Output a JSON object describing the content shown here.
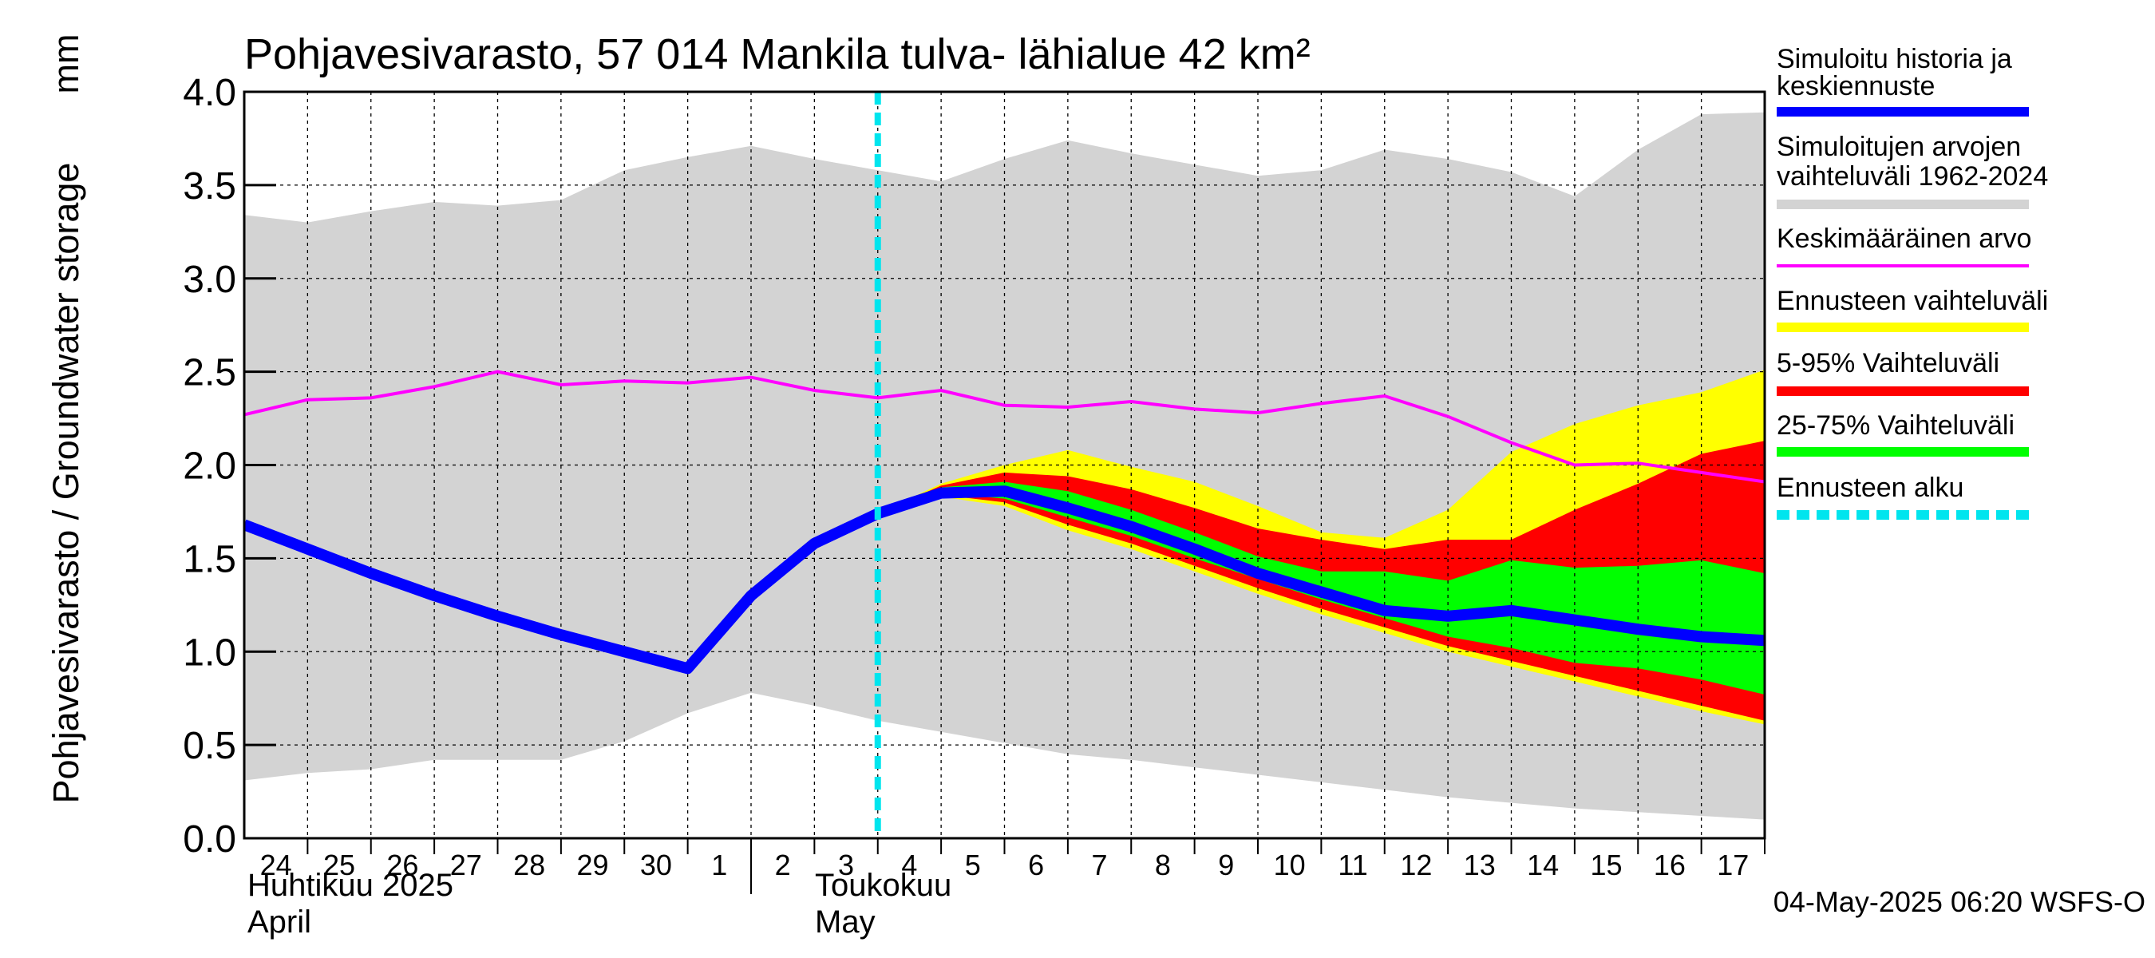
{
  "chart_data": {
    "type": "area",
    "title": "Pohjavesivarasto, 57 014 Mankila tulva- lähialue 42 km²",
    "ylabel": "Pohjavesivarasto / Groundwater storage",
    "yunit": "mm",
    "ylim": [
      0,
      4
    ],
    "yticks": [
      "0.0",
      "0.5",
      "1.0",
      "1.5",
      "2.0",
      "2.5",
      "3.0",
      "3.5",
      "4.0"
    ],
    "ytick_values": [
      0,
      0.5,
      1,
      1.5,
      2,
      2.5,
      3,
      3.5,
      4
    ],
    "xlim": [
      "2025-04-24",
      "2025-05-18"
    ],
    "grid": true,
    "legend_position": "right",
    "x_day_labels": [
      "24",
      "25",
      "26",
      "27",
      "28",
      "29",
      "30",
      "1",
      "2",
      "3",
      "4",
      "5",
      "6",
      "7",
      "8",
      "9",
      "10",
      "11",
      "12",
      "13",
      "14",
      "15",
      "16",
      "17"
    ],
    "month_labels": [
      {
        "fi": "Huhtikuu  2025",
        "en": "April",
        "date": "2025-04-24"
      },
      {
        "fi": "Toukokuu",
        "en": "May",
        "date": "2025-05-02"
      }
    ],
    "forecast_start": "2025-05-04",
    "footer": "04-May-2025 06:20 WSFS-O",
    "colors": {
      "history_range": "#d3d3d3",
      "forecast_range": "#ffff00",
      "range_5_95": "#ff0000",
      "range_25_75": "#00ff00",
      "simulated": "#0000ff",
      "mean": "#ff00ff",
      "forecast_start": "#00e5ee"
    },
    "legend": [
      {
        "label": "Simuloitu historia ja",
        "label2": "keskiennuste",
        "color": "#0000ff",
        "style": "thick"
      },
      {
        "label": "Simuloitujen arvojen",
        "label2": "vaihteluväli 1962-2024",
        "color": "#d3d3d3",
        "style": "thick"
      },
      {
        "label": "Keskimääräinen arvo",
        "label2": "",
        "color": "#ff00ff",
        "style": "thin"
      },
      {
        "label": "Ennusteen vaihteluväli",
        "label2": "",
        "color": "#ffff00",
        "style": "thick"
      },
      {
        "label": "5-95% Vaihteluväli",
        "label2": "",
        "color": "#ff0000",
        "style": "thick"
      },
      {
        "label": "25-75% Vaihteluväli",
        "label2": "",
        "color": "#00ff00",
        "style": "thick"
      },
      {
        "label": "Ennusteen alku",
        "label2": "",
        "color": "#00e5ee",
        "style": "dashed"
      }
    ],
    "series": [
      {
        "name": "Simulated history range upper",
        "x": [
          "2025-04-24",
          "2025-04-25",
          "2025-04-26",
          "2025-04-27",
          "2025-04-28",
          "2025-04-29",
          "2025-04-30",
          "2025-05-01",
          "2025-05-02",
          "2025-05-03",
          "2025-05-04",
          "2025-05-05",
          "2025-05-06",
          "2025-05-07",
          "2025-05-08",
          "2025-05-09",
          "2025-05-10",
          "2025-05-11",
          "2025-05-12",
          "2025-05-13",
          "2025-05-14",
          "2025-05-15",
          "2025-05-16",
          "2025-05-17",
          "2025-05-18"
        ],
        "values": [
          3.34,
          3.3,
          3.36,
          3.41,
          3.39,
          3.42,
          3.58,
          3.65,
          3.71,
          3.64,
          3.58,
          3.52,
          3.64,
          3.74,
          3.67,
          3.61,
          3.55,
          3.58,
          3.69,
          3.64,
          3.57,
          3.44,
          3.69,
          3.88,
          3.89
        ]
      },
      {
        "name": "Simulated history range lower",
        "x": [
          "2025-04-24",
          "2025-04-25",
          "2025-04-26",
          "2025-04-27",
          "2025-04-28",
          "2025-04-29",
          "2025-04-30",
          "2025-05-01",
          "2025-05-02",
          "2025-05-03",
          "2025-05-04",
          "2025-05-05",
          "2025-05-06",
          "2025-05-07",
          "2025-05-08",
          "2025-05-09",
          "2025-05-10",
          "2025-05-11",
          "2025-05-12",
          "2025-05-13",
          "2025-05-14",
          "2025-05-15",
          "2025-05-16",
          "2025-05-17",
          "2025-05-18"
        ],
        "values": [
          0.31,
          0.35,
          0.37,
          0.42,
          0.42,
          0.42,
          0.52,
          0.67,
          0.78,
          0.71,
          0.63,
          0.57,
          0.51,
          0.45,
          0.42,
          0.38,
          0.34,
          0.3,
          0.26,
          0.22,
          0.19,
          0.16,
          0.14,
          0.12,
          0.1
        ]
      },
      {
        "name": "Mean",
        "x": [
          "2025-04-24",
          "2025-04-25",
          "2025-04-26",
          "2025-04-27",
          "2025-04-28",
          "2025-04-29",
          "2025-04-30",
          "2025-05-01",
          "2025-05-02",
          "2025-05-03",
          "2025-05-04",
          "2025-05-05",
          "2025-05-06",
          "2025-05-07",
          "2025-05-08",
          "2025-05-09",
          "2025-05-10",
          "2025-05-11",
          "2025-05-12",
          "2025-05-13",
          "2025-05-14",
          "2025-05-15",
          "2025-05-16",
          "2025-05-17",
          "2025-05-18"
        ],
        "values": [
          2.27,
          2.35,
          2.36,
          2.42,
          2.5,
          2.43,
          2.45,
          2.44,
          2.47,
          2.4,
          2.36,
          2.4,
          2.32,
          2.31,
          2.34,
          2.3,
          2.28,
          2.33,
          2.37,
          2.26,
          2.12,
          2.0,
          2.01,
          1.96,
          1.91
        ]
      },
      {
        "name": "Simulated history and median forecast",
        "x": [
          "2025-04-24",
          "2025-04-25",
          "2025-04-26",
          "2025-04-27",
          "2025-04-28",
          "2025-04-29",
          "2025-04-30",
          "2025-05-01",
          "2025-05-02",
          "2025-05-03",
          "2025-05-04",
          "2025-05-05",
          "2025-05-06",
          "2025-05-07",
          "2025-05-08",
          "2025-05-09",
          "2025-05-10",
          "2025-05-11",
          "2025-05-12",
          "2025-05-13",
          "2025-05-14",
          "2025-05-15",
          "2025-05-16",
          "2025-05-17",
          "2025-05-18"
        ],
        "values": [
          1.68,
          1.55,
          1.42,
          1.3,
          1.19,
          1.09,
          1.0,
          0.91,
          1.3,
          1.58,
          1.74,
          1.85,
          1.86,
          1.77,
          1.67,
          1.55,
          1.42,
          1.32,
          1.22,
          1.19,
          1.22,
          1.17,
          1.12,
          1.08,
          1.06
        ]
      },
      {
        "name": "Forecast range",
        "x": [
          "2025-05-04",
          "2025-05-05",
          "2025-05-06",
          "2025-05-07",
          "2025-05-08",
          "2025-05-09",
          "2025-05-10",
          "2025-05-11",
          "2025-05-12",
          "2025-05-13",
          "2025-05-14",
          "2025-05-15",
          "2025-05-16",
          "2025-05-17",
          "2025-05-18"
        ],
        "upper": [
          1.74,
          1.9,
          2.0,
          2.08,
          1.99,
          1.91,
          1.78,
          1.64,
          1.61,
          1.76,
          2.07,
          2.22,
          2.32,
          2.39,
          2.51
        ],
        "lower": [
          1.74,
          1.83,
          1.78,
          1.65,
          1.55,
          1.43,
          1.31,
          1.2,
          1.1,
          1.0,
          0.92,
          0.84,
          0.76,
          0.68,
          0.61
        ]
      },
      {
        "name": "5-95% range",
        "x": [
          "2025-05-04",
          "2025-05-05",
          "2025-05-06",
          "2025-05-07",
          "2025-05-08",
          "2025-05-09",
          "2025-05-10",
          "2025-05-11",
          "2025-05-12",
          "2025-05-13",
          "2025-05-14",
          "2025-05-15",
          "2025-05-16",
          "2025-05-17",
          "2025-05-18"
        ],
        "upper": [
          1.74,
          1.89,
          1.96,
          1.94,
          1.87,
          1.77,
          1.66,
          1.6,
          1.55,
          1.6,
          1.6,
          1.76,
          1.9,
          2.06,
          2.13
        ]
      },
      {
        "name": "5-95% range lower",
        "x": [
          "2025-05-04",
          "2025-05-05",
          "2025-05-06",
          "2025-05-07",
          "2025-05-08",
          "2025-05-09",
          "2025-05-10",
          "2025-05-11",
          "2025-05-12",
          "2025-05-13",
          "2025-05-14",
          "2025-05-15",
          "2025-05-16",
          "2025-05-17",
          "2025-05-18"
        ],
        "values": [
          1.74,
          1.84,
          1.8,
          1.68,
          1.58,
          1.46,
          1.34,
          1.23,
          1.13,
          1.03,
          0.95,
          0.87,
          0.79,
          0.71,
          0.63
        ]
      },
      {
        "name": "25-75% range",
        "x": [
          "2025-05-04",
          "2025-05-05",
          "2025-05-06",
          "2025-05-07",
          "2025-05-08",
          "2025-05-09",
          "2025-05-10",
          "2025-05-11",
          "2025-05-12",
          "2025-05-13",
          "2025-05-14",
          "2025-05-15",
          "2025-05-16",
          "2025-05-17",
          "2025-05-18"
        ],
        "upper": [
          1.74,
          1.88,
          1.91,
          1.86,
          1.76,
          1.64,
          1.51,
          1.43,
          1.43,
          1.38,
          1.49,
          1.45,
          1.46,
          1.49,
          1.42
        ],
        "lower": [
          1.74,
          1.85,
          1.82,
          1.72,
          1.62,
          1.5,
          1.39,
          1.28,
          1.18,
          1.08,
          1.02,
          0.94,
          0.91,
          0.85,
          0.77
        ]
      }
    ]
  }
}
